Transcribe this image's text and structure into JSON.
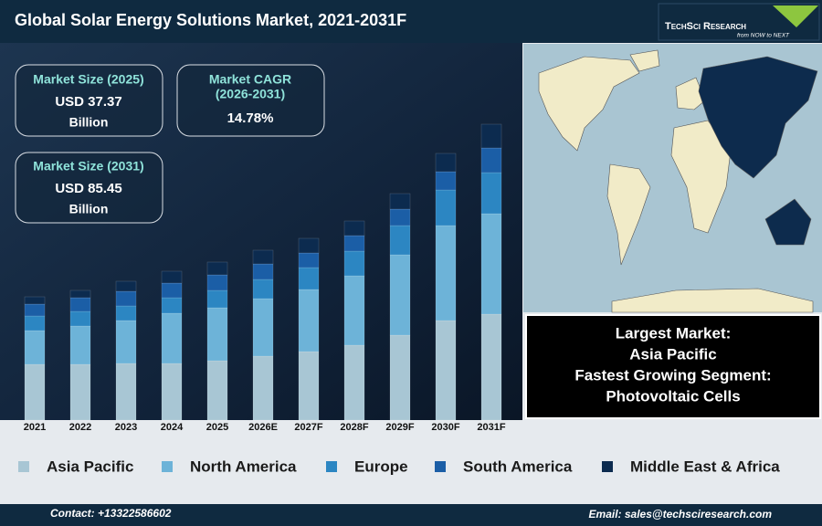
{
  "chart_data": {
    "type": "bar",
    "stacked": true,
    "title": "Global Solar Energy Solutions Market, 2021-2031F",
    "categories": [
      "2021",
      "2022",
      "2023",
      "2024",
      "2025",
      "2026E",
      "2027F",
      "2028F",
      "2029F",
      "2030F",
      "2031F"
    ],
    "series": [
      {
        "name": "Asia Pacific",
        "color": "#a8c6d4",
        "values": [
          61,
          61,
          62,
          62,
          65,
          70,
          75,
          82,
          93,
          109,
          116
        ]
      },
      {
        "name": "North America",
        "color": "#6db3d8",
        "values": [
          37,
          42,
          47,
          55,
          58,
          63,
          68,
          76,
          88,
          104,
          110
        ]
      },
      {
        "name": "Europe",
        "color": "#2c86c2",
        "values": [
          16,
          16,
          16,
          17,
          19,
          21,
          24,
          27,
          32,
          39,
          45
        ]
      },
      {
        "name": "South America",
        "color": "#1b5ea6",
        "values": [
          13,
          15,
          16,
          16,
          17,
          17,
          16,
          17,
          18,
          20,
          27
        ]
      },
      {
        "name": "Middle East & Africa",
        "color": "#0c2b4f",
        "values": [
          8,
          8,
          11,
          13,
          14,
          15,
          16,
          16,
          17,
          20,
          26
        ]
      }
    ],
    "ylim": [
      0,
      340
    ]
  },
  "logo": {
    "name": "TechSci Research",
    "tagline": "from NOW to NEXT"
  },
  "kpis": [
    {
      "label": [
        "Market Size (2025)"
      ],
      "value": "USD 37.37",
      "unit": "Billion"
    },
    {
      "label": [
        "Market CAGR",
        "(2026-2031)"
      ],
      "value": "14.78%"
    },
    {
      "label": [
        "Market Size (2031)"
      ],
      "value": "USD 85.45",
      "unit": "Billion"
    }
  ],
  "highlights": [
    "Largest Market:",
    "Asia Pacific",
    "Fastest Growing Segment:",
    "Photovoltaic Cells"
  ],
  "footer": {
    "contact": "Contact: +13322586602",
    "email": "Email: sales@techsciresearch.com"
  }
}
